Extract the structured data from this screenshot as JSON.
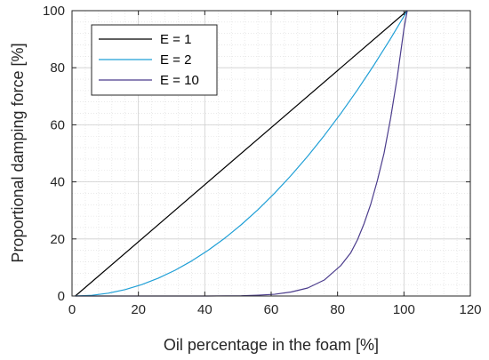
{
  "chart_data": {
    "type": "line",
    "title": "",
    "xlabel": "Oil percentage in the foam [%]",
    "ylabel": "Proportional damping force [%]",
    "xlim": [
      0,
      120
    ],
    "ylim": [
      0,
      100
    ],
    "xticks": [
      0,
      20,
      40,
      60,
      80,
      100,
      120
    ],
    "yticks": [
      0,
      20,
      40,
      60,
      80,
      100
    ],
    "grid": true,
    "minor_grid": true,
    "legend_position": "top-left",
    "series": [
      {
        "name": "E = 1",
        "color": "#000000",
        "x": [
          1,
          101
        ],
        "y": [
          0,
          100
        ]
      },
      {
        "name": "E = 2",
        "color": "#1f9fd6",
        "x": [
          1,
          6,
          11,
          16,
          21,
          26,
          31,
          36,
          41,
          46,
          51,
          56,
          61,
          66,
          71,
          76,
          81,
          86,
          91,
          96,
          101
        ],
        "y": [
          0,
          0.25,
          1,
          2.25,
          4,
          6.25,
          9,
          12.25,
          16,
          20.25,
          25,
          30.25,
          36,
          42.25,
          49,
          56.25,
          64,
          72.25,
          81,
          90.25,
          100
        ]
      },
      {
        "name": "E = 10",
        "color": "#4b3c8c",
        "x": [
          1,
          11,
          21,
          31,
          41,
          51,
          56,
          61,
          66,
          71,
          76,
          81,
          84,
          86,
          88,
          90,
          92,
          94,
          96,
          98,
          100,
          101
        ],
        "y": [
          0,
          0,
          0,
          0,
          0.01,
          0.1,
          0.3,
          0.6,
          1.4,
          2.8,
          5.6,
          10.7,
          15.2,
          19.7,
          25.4,
          32.2,
          40.5,
          50.0,
          62.4,
          76.8,
          93.6,
          100
        ]
      }
    ]
  }
}
